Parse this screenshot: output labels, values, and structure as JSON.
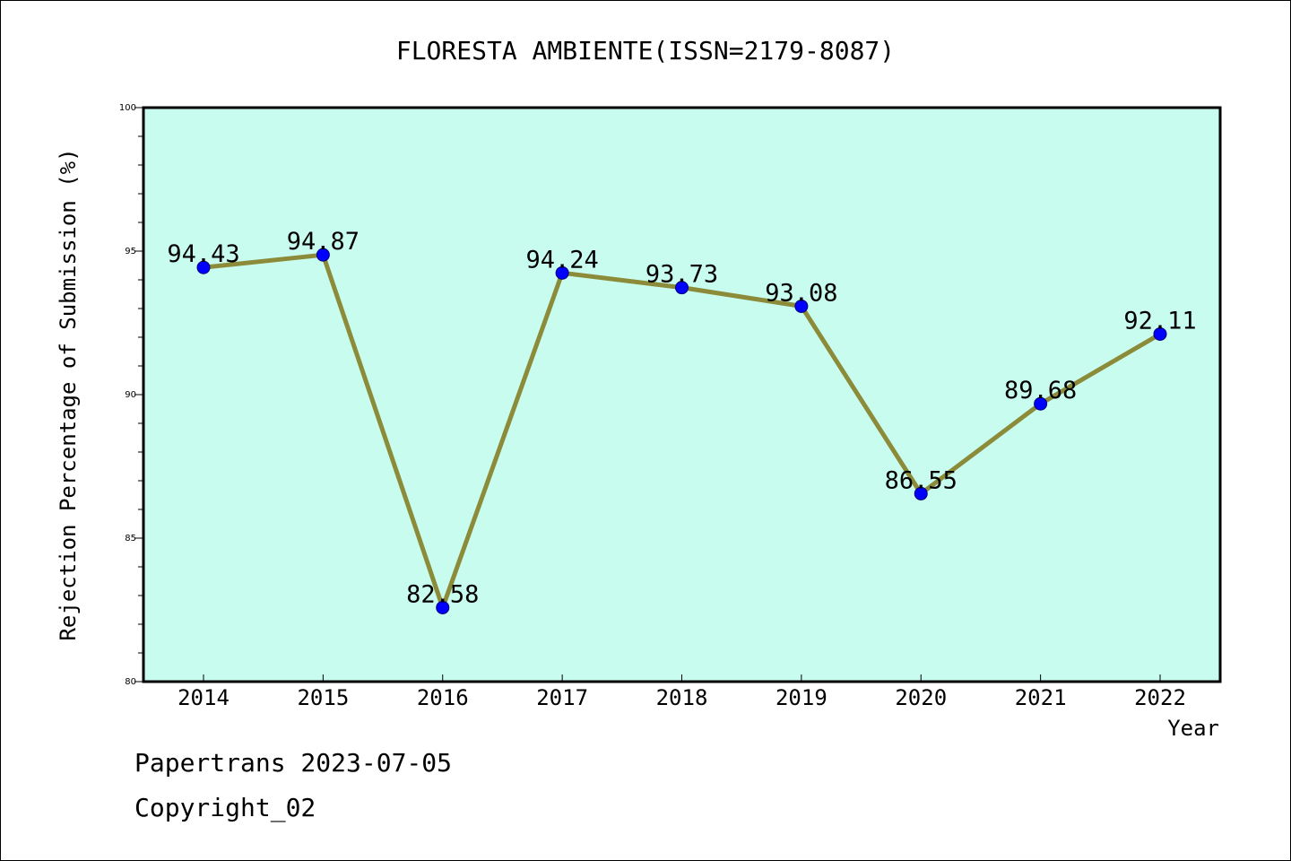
{
  "chart_data": {
    "type": "line",
    "title": "FLORESTA AMBIENTE(ISSN=2179-8087)",
    "xlabel": "Year",
    "ylabel": "Rejection Percentage of Submission (%)",
    "x": [
      "2014",
      "2015",
      "2016",
      "2017",
      "2018",
      "2019",
      "2020",
      "2021",
      "2022"
    ],
    "series": [
      {
        "values": [
          94.43,
          94.87,
          82.58,
          94.24,
          93.73,
          93.08,
          86.55,
          89.68,
          92.11
        ],
        "data_labels": [
          "94.43",
          "94.87",
          "82.58",
          "94.24",
          "93.73",
          "93.08",
          "86.55",
          "89.68",
          "92.11"
        ]
      }
    ],
    "ylim": [
      80,
      100
    ],
    "yticks": [
      "80",
      "85",
      "90",
      "95",
      "100"
    ],
    "grid": false,
    "colors": {
      "plot_background": "#c8fcee",
      "line": "#8b8b3a",
      "marker": "#0000ff"
    }
  },
  "footer": {
    "source": "Papertrans 2023-07-05",
    "copyright": "Copyright_02"
  }
}
